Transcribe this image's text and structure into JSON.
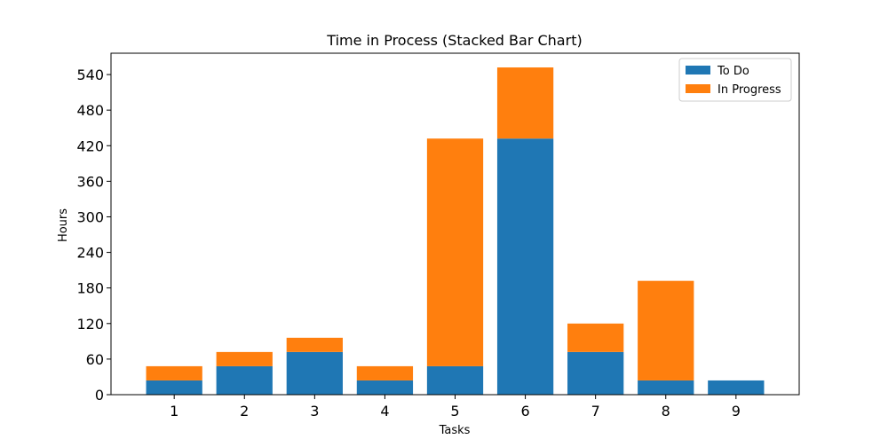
{
  "chart_data": {
    "type": "bar",
    "stacked": true,
    "title": "Time in Process (Stacked Bar Chart)",
    "xlabel": "Tasks",
    "ylabel": "Hours",
    "categories": [
      "1",
      "2",
      "3",
      "4",
      "5",
      "6",
      "7",
      "8",
      "9"
    ],
    "series": [
      {
        "name": "To Do",
        "color": "#1f77b4",
        "values": [
          24,
          48,
          72,
          24,
          48,
          432,
          72,
          24,
          24
        ]
      },
      {
        "name": "In Progress",
        "color": "#ff7f0e",
        "values": [
          24,
          24,
          24,
          24,
          384,
          120,
          48,
          168,
          0
        ]
      }
    ],
    "ylim": [
      0,
      576
    ],
    "yticks": [
      0,
      60,
      120,
      180,
      240,
      300,
      360,
      420,
      480,
      540
    ],
    "grid": false,
    "legend_position": "top-right"
  }
}
